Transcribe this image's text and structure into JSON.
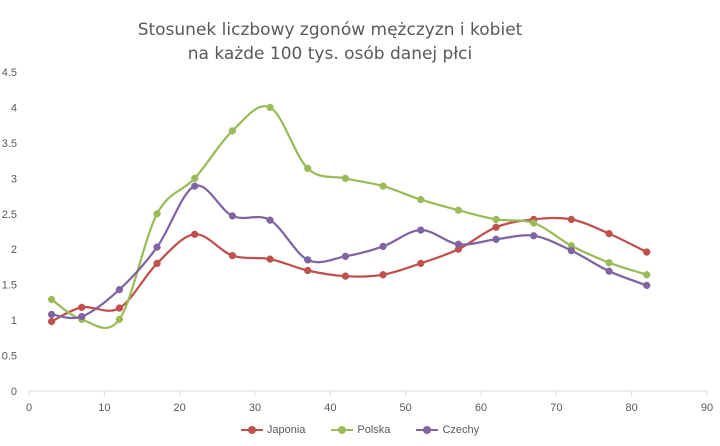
{
  "chart_data": {
    "type": "line",
    "title_line1": "Stosunek liczbowy zgonów mężczyzn i kobiet",
    "title_line2": "na każde 100 tys. osób danej płci",
    "xlim": [
      0,
      90
    ],
    "ylim": [
      0,
      4.5
    ],
    "x_ticks": [
      "0",
      "10",
      "20",
      "30",
      "40",
      "50",
      "60",
      "70",
      "80",
      "90"
    ],
    "y_ticks": [
      "0",
      "0.5",
      "1",
      "1.5",
      "2",
      "2.5",
      "3",
      "3.5",
      "4",
      "4.5"
    ],
    "x": [
      3,
      7,
      12,
      17,
      22,
      27,
      32,
      37,
      42,
      47,
      52,
      57,
      62,
      67,
      72,
      77,
      82
    ],
    "grid": false,
    "legend_position": "bottom",
    "series": [
      {
        "name": "Japonia",
        "color": "#c0504d",
        "values": [
          0.98,
          1.18,
          1.17,
          1.8,
          2.21,
          1.91,
          1.86,
          1.7,
          1.62,
          1.64,
          1.8,
          2.0,
          2.31,
          2.42,
          2.42,
          2.22,
          1.96
        ]
      },
      {
        "name": "Polska",
        "color": "#9bbb59",
        "values": [
          1.29,
          1.01,
          1.01,
          2.5,
          3.0,
          3.67,
          4.0,
          3.14,
          3.0,
          2.89,
          2.7,
          2.55,
          2.42,
          2.37,
          2.05,
          1.81,
          1.64
        ]
      },
      {
        "name": "Czechy",
        "color": "#8064a2",
        "values": [
          1.08,
          1.05,
          1.43,
          2.03,
          2.89,
          2.47,
          2.41,
          1.85,
          1.9,
          2.04,
          2.27,
          2.07,
          2.14,
          2.19,
          1.98,
          1.69,
          1.49
        ]
      }
    ]
  }
}
